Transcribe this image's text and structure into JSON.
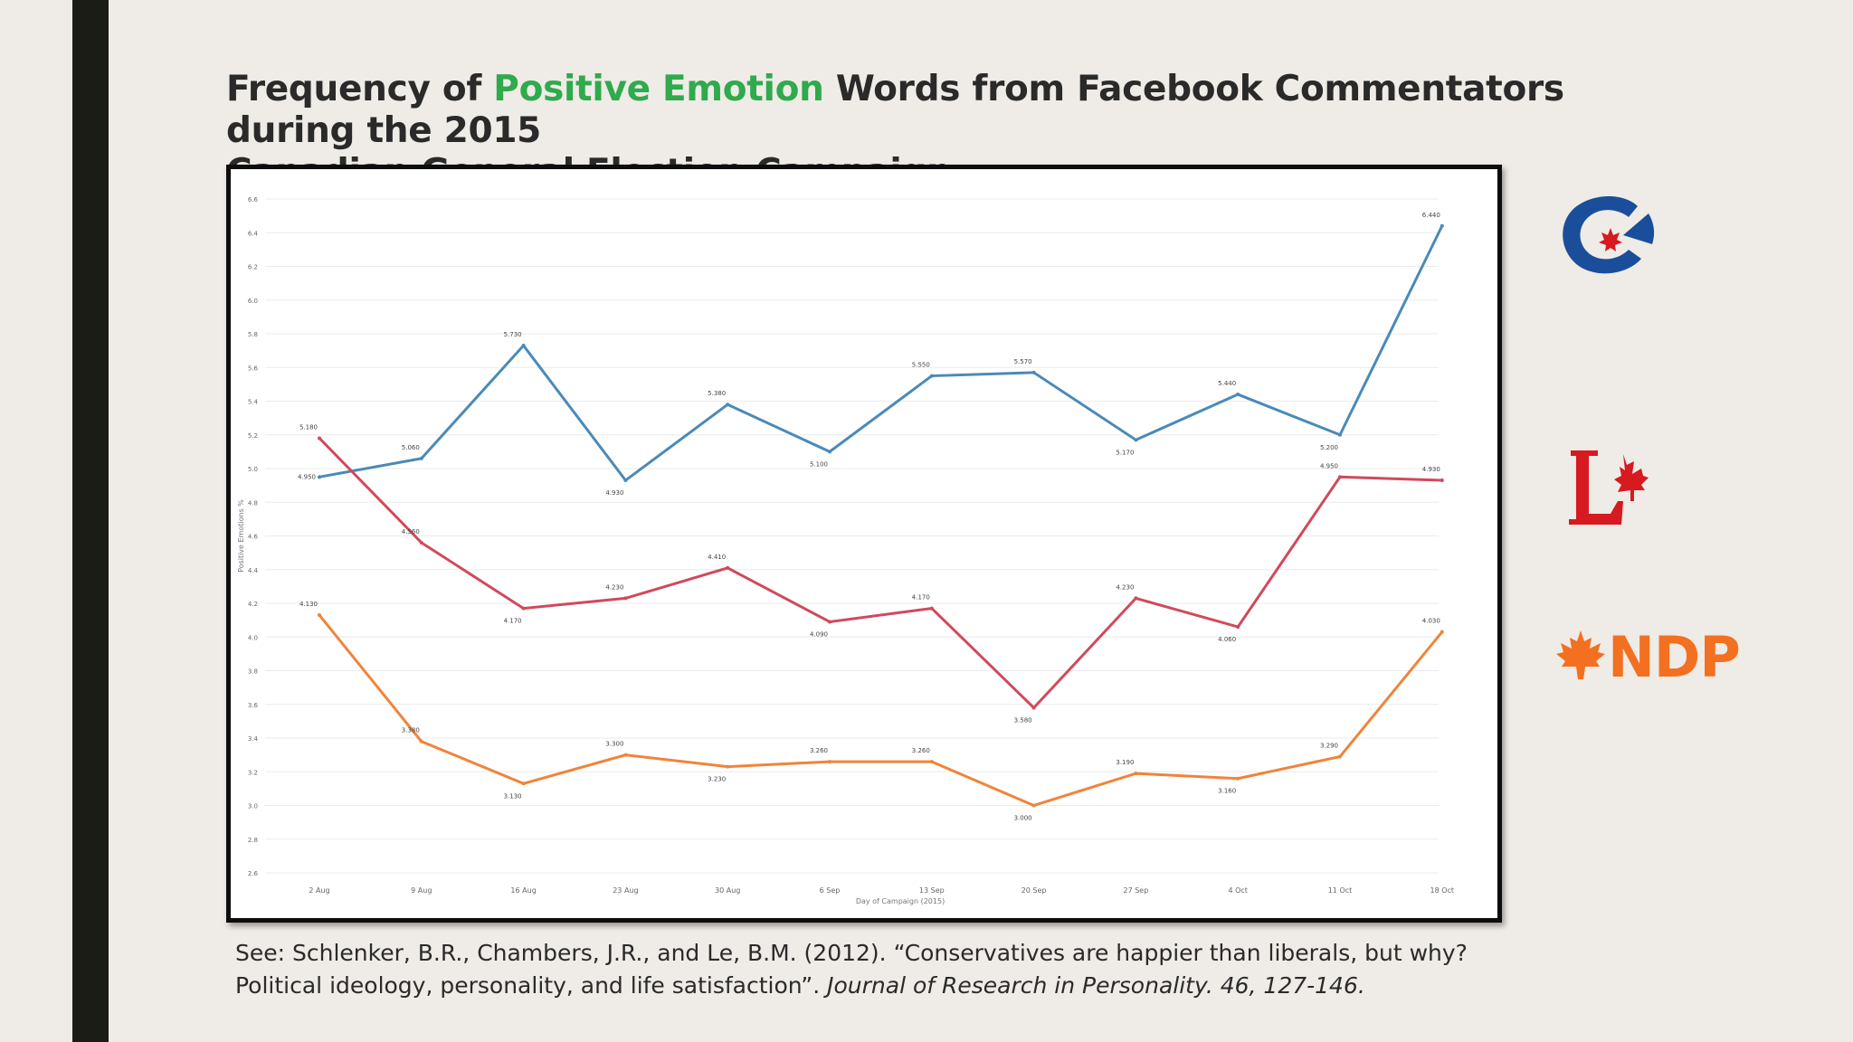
{
  "title": {
    "part1": "Frequency of ",
    "highlight": "Positive Emotion",
    "part2": " Words from Facebook Commentators during the 2015",
    "line2": "Canadian General Election Campaign"
  },
  "reference": {
    "line1": "See:  Schlenker, B.R., Chambers, J.R., and Le, B.M. (2012). “Conservatives are happier than liberals, but why?",
    "line2_plain": "Political ideology, personality, and life satisfaction”. ",
    "line2_italic": "Journal of Research in Personality. 46, 127-146."
  },
  "logos": [
    {
      "name": "conservative-logo",
      "icon": "conservative-c-icon",
      "color": "#1a4e9b"
    },
    {
      "name": "liberal-logo",
      "icon": "liberal-l-maple-icon",
      "color": "#d71920"
    },
    {
      "name": "ndp-logo",
      "icon": "ndp-maple-icon",
      "text": "NDP",
      "color": "#f37021"
    }
  ],
  "chart_data": {
    "type": "line",
    "xlabel": "Day of Campaign (2015)",
    "ylabel": "Positive Emotions %",
    "ylim": [
      2.6,
      6.6
    ],
    "yticks": [
      "2.6",
      "2.8",
      "3.0",
      "3.2",
      "3.4",
      "3.6",
      "3.8",
      "4.0",
      "4.2",
      "4.4",
      "4.6",
      "4.8",
      "5.0",
      "5.2",
      "5.4",
      "5.6",
      "5.8",
      "6.0",
      "6.2",
      "6.4",
      "6.6"
    ],
    "categories": [
      "2 Aug",
      "9 Aug",
      "16 Aug",
      "23 Aug",
      "30 Aug",
      "6 Sep",
      "13 Sep",
      "20 Sep",
      "27 Sep",
      "4 Oct",
      "11 Oct",
      "18 Oct"
    ],
    "grid": true,
    "series": [
      {
        "color": "#4a8ab8",
        "values": [
          4.95,
          5.06,
          5.73,
          4.93,
          5.38,
          5.1,
          5.55,
          5.57,
          5.17,
          5.44,
          5.2,
          6.44
        ],
        "labels": [
          "4.950",
          "5.060",
          "5.730",
          "4.930",
          "5.380",
          "5.100",
          "5.550",
          "5.570",
          "5.170",
          "5.440",
          "5.200",
          "6.440"
        ]
      },
      {
        "color": "#d1495b",
        "values": [
          5.18,
          4.56,
          4.17,
          4.23,
          4.41,
          4.09,
          4.17,
          3.58,
          4.23,
          4.06,
          4.95,
          4.93
        ],
        "labels": [
          "5.180",
          "4.560",
          "4.170",
          "4.230",
          "4.410",
          "4.090",
          "4.170",
          "3.580",
          "4.230",
          "4.060",
          "4.950",
          "4.930"
        ]
      },
      {
        "color": "#f0843b",
        "values": [
          4.13,
          3.38,
          3.13,
          3.3,
          3.23,
          3.26,
          3.26,
          3.0,
          3.19,
          3.16,
          3.29,
          4.03
        ],
        "labels": [
          "4.130",
          "3.380",
          "3.130",
          "3.300",
          "3.230",
          "3.260",
          "3.260",
          "3.000",
          "3.190",
          "3.160",
          "3.290",
          "4.030"
        ]
      }
    ]
  }
}
